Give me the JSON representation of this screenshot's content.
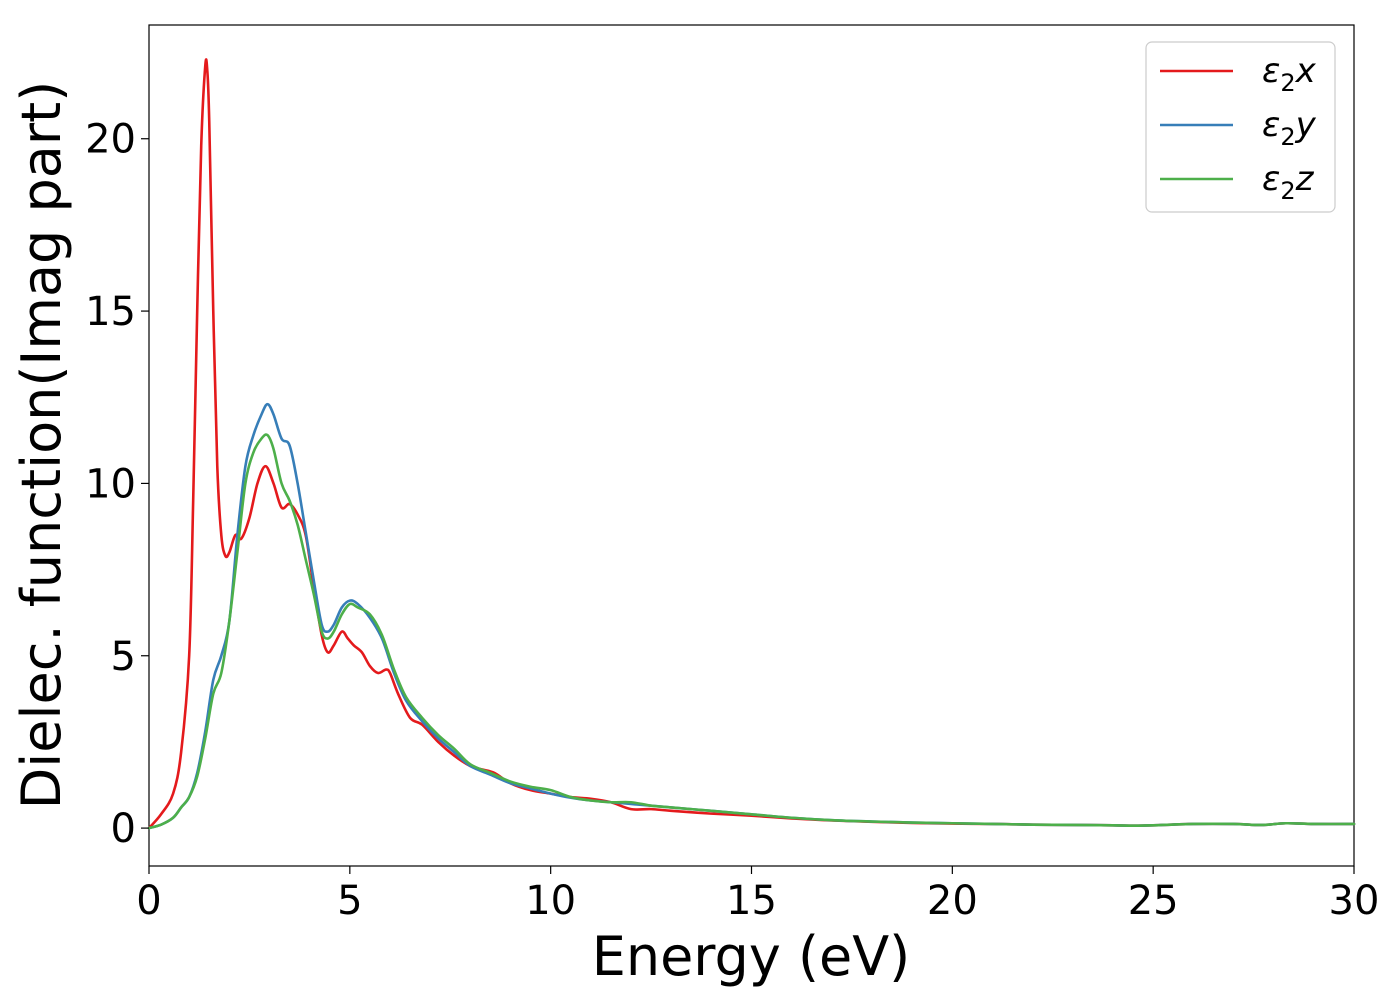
{
  "chart_data": {
    "type": "line",
    "title": "",
    "xlabel": "Energy (eV)",
    "ylabel": "Dielec. function(Imag part)",
    "xlim": [
      0,
      30
    ],
    "ylim": [
      -1.1,
      23.3
    ],
    "xticks": [
      0,
      5,
      10,
      15,
      20,
      25,
      30
    ],
    "yticks": [
      0,
      5,
      10,
      15,
      20
    ],
    "grid": false,
    "legend_position": "top-right",
    "series": [
      {
        "name": "ε₂x",
        "legend_main": "ε",
        "legend_sub": "2",
        "legend_suffix": "x",
        "color": "#e41a1c",
        "x": [
          0,
          0.3,
          0.6,
          0.8,
          1.0,
          1.1,
          1.2,
          1.3,
          1.4,
          1.45,
          1.5,
          1.6,
          1.7,
          1.8,
          1.9,
          2.0,
          2.15,
          2.3,
          2.5,
          2.7,
          2.9,
          3.1,
          3.3,
          3.5,
          3.7,
          3.9,
          4.1,
          4.3,
          4.45,
          4.6,
          4.8,
          4.95,
          5.1,
          5.3,
          5.5,
          5.7,
          5.9,
          6.0,
          6.2,
          6.5,
          6.8,
          7.2,
          7.6,
          8.0,
          8.3,
          8.6,
          9.0,
          9.5,
          10.0,
          10.5,
          11.0,
          11.5,
          12.0,
          12.5,
          13.0,
          14.0,
          15.0,
          16.0,
          17.0,
          18.0,
          19.0,
          20.0,
          21.0,
          22.0,
          23.0,
          24.0,
          24.5,
          25.0,
          26.0,
          27.0,
          27.7,
          28.3,
          29.0,
          30.0
        ],
        "values": [
          0,
          0.4,
          1.0,
          2.2,
          5.0,
          9.5,
          15.0,
          19.8,
          22.1,
          22.0,
          20.5,
          15.0,
          10.5,
          8.5,
          7.9,
          8.0,
          8.5,
          8.4,
          9.0,
          10.0,
          10.5,
          10.0,
          9.3,
          9.4,
          9.1,
          8.5,
          7.0,
          5.6,
          5.1,
          5.3,
          5.7,
          5.5,
          5.3,
          5.1,
          4.7,
          4.5,
          4.6,
          4.5,
          3.9,
          3.2,
          3.0,
          2.5,
          2.1,
          1.8,
          1.7,
          1.6,
          1.3,
          1.1,
          1.0,
          0.9,
          0.85,
          0.75,
          0.55,
          0.55,
          0.5,
          0.42,
          0.36,
          0.28,
          0.22,
          0.18,
          0.15,
          0.13,
          0.12,
          0.1,
          0.09,
          0.08,
          0.07,
          0.08,
          0.12,
          0.12,
          0.09,
          0.14,
          0.12,
          0.12
        ]
      },
      {
        "name": "ε₂y",
        "legend_main": "ε",
        "legend_sub": "2",
        "legend_suffix": "y",
        "color": "#377eb8",
        "x": [
          0,
          0.3,
          0.6,
          0.8,
          1.0,
          1.2,
          1.4,
          1.6,
          1.8,
          2.0,
          2.2,
          2.4,
          2.6,
          2.8,
          2.95,
          3.1,
          3.3,
          3.5,
          3.7,
          3.9,
          4.1,
          4.3,
          4.45,
          4.6,
          4.8,
          5.0,
          5.2,
          5.5,
          5.8,
          6.1,
          6.4,
          6.8,
          7.2,
          7.6,
          8.0,
          8.5,
          9.0,
          9.5,
          10.0,
          10.5,
          11.0,
          11.5,
          12.0,
          12.5,
          13.0,
          14.0,
          15.0,
          16.0,
          17.0,
          18.0,
          19.0,
          20.0,
          21.0,
          22.0,
          23.0,
          24.0,
          24.5,
          25.0,
          26.0,
          27.0,
          27.7,
          28.3,
          29.0,
          30.0
        ],
        "values": [
          0,
          0.1,
          0.3,
          0.6,
          0.9,
          1.6,
          2.8,
          4.3,
          5.0,
          6.0,
          8.5,
          10.5,
          11.4,
          12.0,
          12.3,
          12.0,
          11.3,
          11.1,
          10.0,
          8.6,
          7.2,
          5.9,
          5.7,
          5.9,
          6.4,
          6.6,
          6.5,
          6.1,
          5.5,
          4.5,
          3.7,
          3.1,
          2.6,
          2.2,
          1.8,
          1.55,
          1.3,
          1.15,
          1.0,
          0.88,
          0.8,
          0.75,
          0.7,
          0.65,
          0.6,
          0.5,
          0.4,
          0.3,
          0.23,
          0.19,
          0.16,
          0.14,
          0.12,
          0.1,
          0.09,
          0.08,
          0.07,
          0.08,
          0.12,
          0.12,
          0.09,
          0.14,
          0.12,
          0.12
        ]
      },
      {
        "name": "ε₂z",
        "legend_main": "ε",
        "legend_sub": "2",
        "legend_suffix": "z",
        "color": "#4daf4a",
        "x": [
          0,
          0.3,
          0.6,
          0.8,
          1.0,
          1.2,
          1.4,
          1.6,
          1.8,
          2.0,
          2.2,
          2.4,
          2.6,
          2.8,
          2.95,
          3.1,
          3.3,
          3.5,
          3.7,
          3.9,
          4.1,
          4.3,
          4.45,
          4.6,
          4.8,
          5.0,
          5.2,
          5.5,
          5.8,
          6.1,
          6.4,
          6.8,
          7.2,
          7.6,
          8.0,
          8.5,
          9.0,
          9.5,
          10.0,
          10.5,
          11.0,
          11.5,
          12.0,
          12.5,
          13.0,
          14.0,
          15.0,
          16.0,
          17.0,
          18.0,
          19.0,
          20.0,
          21.0,
          22.0,
          23.0,
          24.0,
          24.5,
          25.0,
          26.0,
          27.0,
          27.7,
          28.3,
          29.0,
          30.0
        ],
        "values": [
          0,
          0.1,
          0.3,
          0.6,
          0.9,
          1.5,
          2.6,
          3.9,
          4.5,
          6.0,
          8.0,
          10.0,
          10.9,
          11.3,
          11.4,
          11.0,
          10.0,
          9.5,
          8.8,
          7.8,
          6.8,
          5.7,
          5.5,
          5.7,
          6.2,
          6.5,
          6.4,
          6.2,
          5.6,
          4.6,
          3.8,
          3.2,
          2.7,
          2.3,
          1.85,
          1.6,
          1.35,
          1.2,
          1.1,
          0.9,
          0.8,
          0.75,
          0.75,
          0.65,
          0.6,
          0.5,
          0.4,
          0.3,
          0.23,
          0.19,
          0.16,
          0.14,
          0.12,
          0.1,
          0.09,
          0.08,
          0.07,
          0.08,
          0.12,
          0.12,
          0.09,
          0.14,
          0.12,
          0.12
        ]
      }
    ]
  }
}
